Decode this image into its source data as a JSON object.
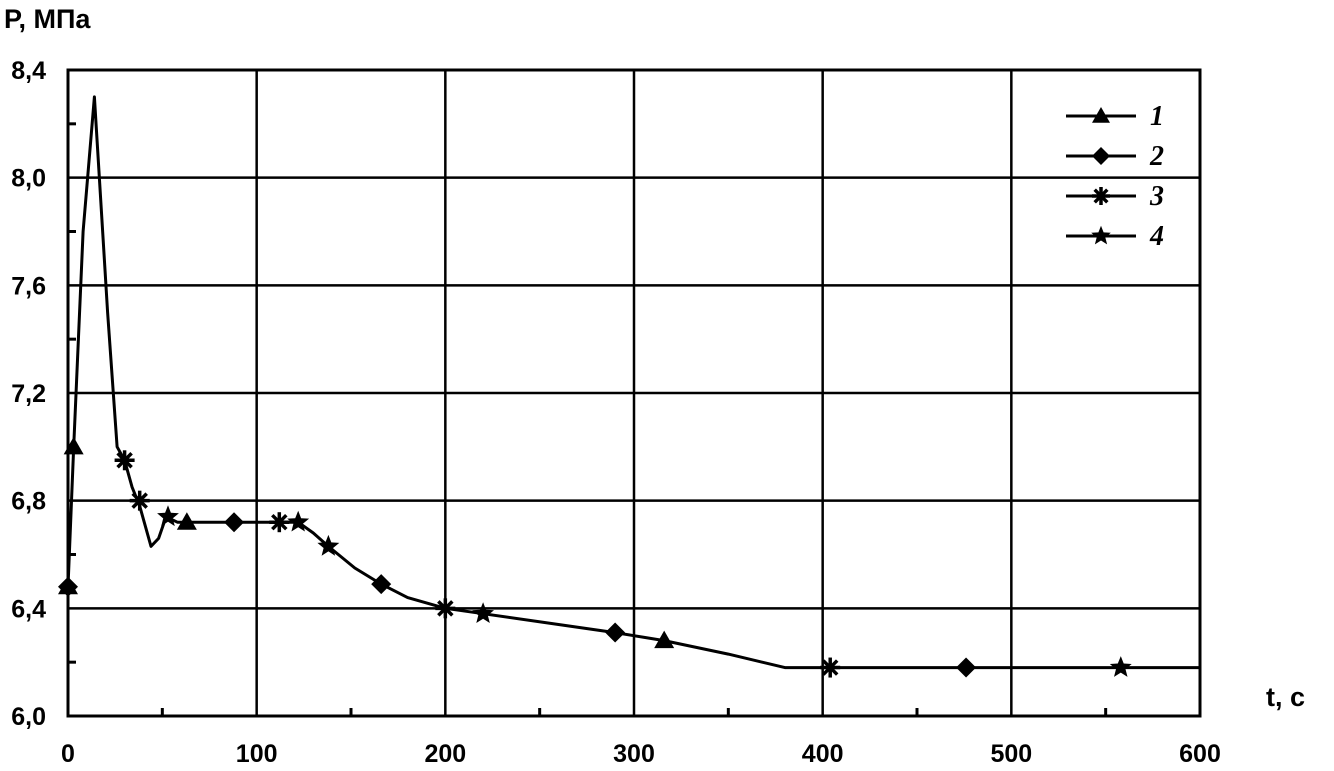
{
  "chart_data": {
    "type": "line",
    "ylabel": "P, МПа",
    "xlabel": "t, c",
    "xlim": [
      0,
      600
    ],
    "ylim": [
      6.0,
      8.4
    ],
    "x_ticks": [
      0,
      100,
      200,
      300,
      400,
      500,
      600
    ],
    "x_tick_labels": [
      "0",
      "100",
      "200",
      "300",
      "400",
      "500",
      "600"
    ],
    "y_ticks": [
      6.0,
      6.4,
      6.8,
      7.2,
      7.6,
      8.0,
      8.4
    ],
    "y_tick_labels": [
      "6,0",
      "6,4",
      "6,8",
      "7,2",
      "7,6",
      "8,0",
      "8,4"
    ],
    "grid": true,
    "legend": {
      "position": "top-right",
      "entries": [
        "1",
        "2",
        "3",
        "4"
      ]
    },
    "curve": [
      [
        0,
        6.48
      ],
      [
        3,
        7.0
      ],
      [
        8,
        7.8
      ],
      [
        14,
        8.3
      ],
      [
        21,
        7.5
      ],
      [
        26,
        7.0
      ],
      [
        30,
        6.95
      ],
      [
        34,
        6.85
      ],
      [
        38,
        6.78
      ],
      [
        44,
        6.63
      ],
      [
        48,
        6.66
      ],
      [
        52,
        6.74
      ],
      [
        58,
        6.72
      ],
      [
        64,
        6.72
      ],
      [
        70,
        6.72
      ],
      [
        88,
        6.72
      ],
      [
        112,
        6.72
      ],
      [
        122,
        6.72
      ],
      [
        130,
        6.68
      ],
      [
        138,
        6.63
      ],
      [
        152,
        6.55
      ],
      [
        166,
        6.49
      ],
      [
        180,
        6.44
      ],
      [
        200,
        6.4
      ],
      [
        220,
        6.38
      ],
      [
        260,
        6.34
      ],
      [
        290,
        6.31
      ],
      [
        316,
        6.28
      ],
      [
        350,
        6.23
      ],
      [
        380,
        6.18
      ],
      [
        404,
        6.18
      ],
      [
        450,
        6.18
      ],
      [
        476,
        6.18
      ],
      [
        520,
        6.18
      ],
      [
        558,
        6.18
      ],
      [
        600,
        6.18
      ]
    ],
    "series": [
      {
        "name": "1",
        "marker": "triangle",
        "points": [
          [
            0,
            6.48
          ],
          [
            3,
            7.0
          ],
          [
            63,
            6.72
          ],
          [
            316,
            6.28
          ]
        ]
      },
      {
        "name": "2",
        "marker": "diamond",
        "points": [
          [
            0,
            6.48
          ],
          [
            88,
            6.72
          ],
          [
            166,
            6.49
          ],
          [
            290,
            6.31
          ],
          [
            476,
            6.18
          ]
        ]
      },
      {
        "name": "3",
        "marker": "asterisk",
        "points": [
          [
            30,
            6.95
          ],
          [
            38,
            6.8
          ],
          [
            112,
            6.72
          ],
          [
            200,
            6.4
          ],
          [
            404,
            6.18
          ]
        ]
      },
      {
        "name": "4",
        "marker": "star",
        "points": [
          [
            53,
            6.74
          ],
          [
            122,
            6.72
          ],
          [
            138,
            6.63
          ],
          [
            220,
            6.38
          ],
          [
            558,
            6.18
          ]
        ]
      }
    ],
    "colors": {
      "line": "#000000",
      "grid": "#000000"
    }
  }
}
